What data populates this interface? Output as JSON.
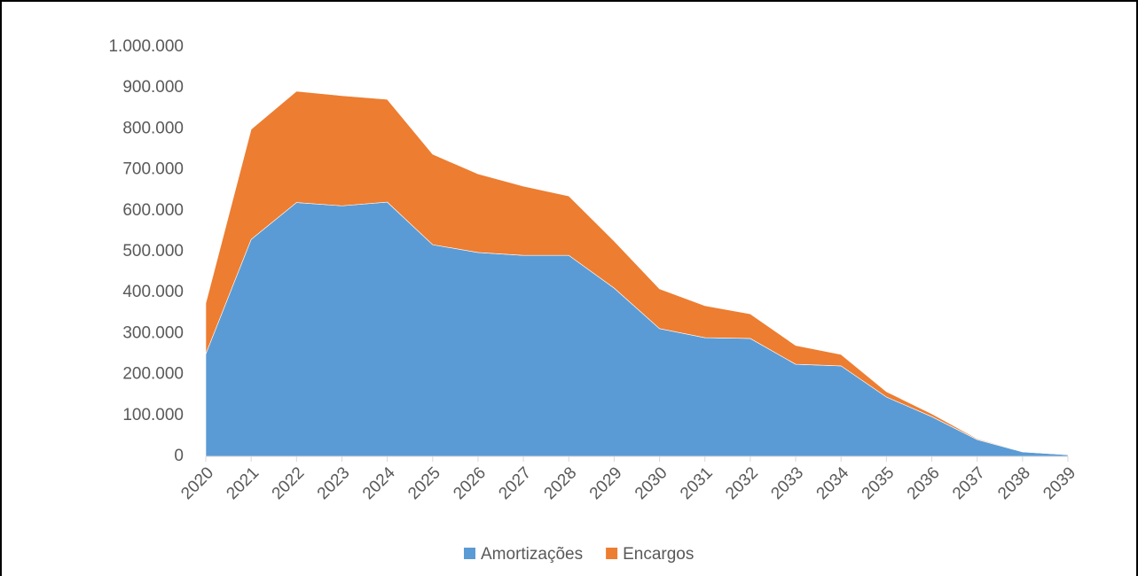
{
  "chart_data": {
    "type": "stacked-area",
    "categories": [
      "2020",
      "2021",
      "2022",
      "2023",
      "2024",
      "2025",
      "2026",
      "2027",
      "2028",
      "2029",
      "2030",
      "2031",
      "2032",
      "2033",
      "2034",
      "2035",
      "2036",
      "2037",
      "2038",
      "2039"
    ],
    "series": [
      {
        "name": "Amortizações",
        "color": "#5b9bd5",
        "values": [
          250000,
          530000,
          620000,
          612000,
          621000,
          517000,
          498000,
          491000,
          491000,
          411000,
          312000,
          290000,
          288000,
          225000,
          221000,
          145000,
          97000,
          41000,
          11000,
          4000
        ]
      },
      {
        "name": "Encargos",
        "color": "#ed7d31",
        "values": [
          124000,
          269000,
          272000,
          269000,
          251000,
          221000,
          192000,
          169000,
          145000,
          115000,
          97000,
          78000,
          60000,
          46000,
          28000,
          13000,
          7000,
          2000,
          1000,
          0
        ]
      }
    ],
    "ylim": [
      0,
      1000000
    ],
    "yticks": [
      0,
      {
        "value": 100000,
        "label": "100.000"
      },
      {
        "value": 200000,
        "label": "200.000"
      },
      {
        "value": 300000,
        "label": "300.000"
      },
      {
        "value": 400000,
        "label": "400.000"
      },
      {
        "value": 500000,
        "label": "500.000"
      },
      {
        "value": 600000,
        "label": "600.000"
      },
      {
        "value": 700000,
        "label": "700.000"
      },
      {
        "value": 800000,
        "label": "800.000"
      },
      {
        "value": 900000,
        "label": "900.000"
      },
      {
        "value": 1000000,
        "label": "1.000.000"
      }
    ],
    "legend": "bottom"
  }
}
